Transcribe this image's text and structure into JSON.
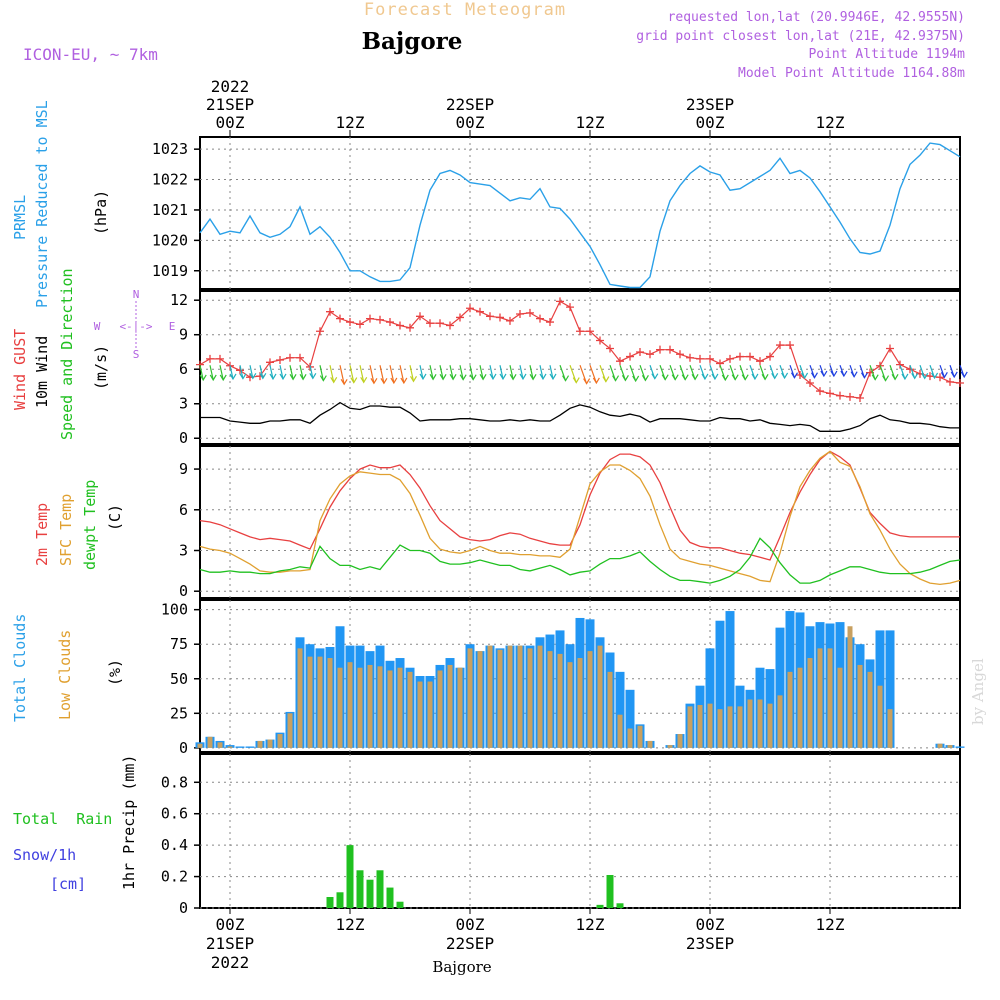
{
  "header": {
    "title": "Forecast Meteogram",
    "location": "Bajgore",
    "model": "ICON-EU, ~ 7km",
    "requested": "requested lon,lat (20.9946E, 42.9555N)",
    "grid_point": "grid point closest lon,lat (21E, 42.9375N)",
    "point_altitude": "Point Altitude 1194m",
    "model_altitude": "Model Point Altitude 1164.88m",
    "watermark": "by Angel",
    "footer_location": "Bajgore"
  },
  "time_axis": {
    "top_labels": [
      {
        "label": "00Z",
        "sub": "21SEP",
        "year": "2022",
        "hour": 3
      },
      {
        "label": "12Z",
        "sub": "",
        "year": "",
        "hour": 15
      },
      {
        "label": "00Z",
        "sub": "22SEP",
        "year": "",
        "hour": 27
      },
      {
        "label": "12Z",
        "sub": "",
        "year": "",
        "hour": 39
      },
      {
        "label": "00Z",
        "sub": "23SEP",
        "year": "",
        "hour": 51
      },
      {
        "label": "12Z",
        "sub": "",
        "year": "",
        "hour": 63
      }
    ],
    "bottom_labels": [
      {
        "label": "00Z",
        "sub": "21SEP",
        "year": "2022",
        "hour": 3
      },
      {
        "label": "12Z",
        "sub": "",
        "year": "",
        "hour": 15
      },
      {
        "label": "00Z",
        "sub": "22SEP",
        "year": "",
        "hour": 27
      },
      {
        "label": "12Z",
        "sub": "",
        "year": "",
        "hour": 39
      },
      {
        "label": "00Z",
        "sub": "23SEP",
        "year": "",
        "hour": 51
      },
      {
        "label": "12Z",
        "sub": "",
        "year": "",
        "hour": 63
      }
    ],
    "hour_range": [
      0,
      76
    ]
  },
  "panels": {
    "pressure": {
      "labels": [
        "PRMSL",
        "Pressure Reduced to MSL"
      ],
      "unit": "(hPa)",
      "ticks": [
        "1019",
        "1020",
        "1021",
        "1022",
        "1023"
      ]
    },
    "wind": {
      "labels": [
        "Wind GUST",
        "10m Wind",
        "Speed and Direction"
      ],
      "unit": "(m/s)",
      "ticks": [
        "0",
        "3",
        "6",
        "9",
        "12"
      ],
      "compass": {
        "n": "N",
        "s": "S",
        "w": "W",
        "e": "E",
        "arrows": "<-|->"
      }
    },
    "temp": {
      "labels": [
        "2m Temp",
        "SFC Temp",
        "dewpt Temp"
      ],
      "unit": "(C)",
      "ticks": [
        "0",
        "3",
        "6",
        "9"
      ]
    },
    "clouds": {
      "labels": [
        "Total Clouds",
        "Low Clouds"
      ],
      "unit": "(%)",
      "ticks": [
        "0",
        "25",
        "50",
        "75",
        "100"
      ]
    },
    "precip": {
      "labels": [
        "Total  Rain",
        "Snow/1h",
        "[cm]"
      ],
      "unit": "1hr Precip (mm)",
      "ticks": [
        "0",
        "0.2",
        "0.4",
        "0.6",
        "0.8"
      ]
    }
  },
  "colors": {
    "pressure": "#2aa0e8",
    "gust": "#e84040",
    "wind": "#000000",
    "temp2m": "#e84040",
    "sfc": "#e0a030",
    "dew": "#20c020",
    "total_clouds": "#2196f3",
    "low_clouds": "#c8a060",
    "rain": "#20c020",
    "snow": "#4040e0",
    "purple": "#b060e0",
    "title_orange": "#f0c890"
  },
  "chart_data": [
    {
      "type": "line",
      "title": "PRMSL Pressure Reduced to MSL",
      "ylabel": "(hPa)",
      "ylim": [
        1018.4,
        1023.4
      ],
      "x": [
        0,
        1,
        2,
        3,
        4,
        5,
        6,
        7,
        8,
        9,
        10,
        11,
        12,
        13,
        14,
        15,
        16,
        17,
        18,
        19,
        20,
        21,
        22,
        23,
        24,
        25,
        26,
        27,
        28,
        29,
        30,
        31,
        32,
        33,
        34,
        35,
        36,
        37,
        38,
        39,
        40,
        41,
        42,
        43,
        44,
        45,
        46,
        47,
        48,
        49,
        50,
        51,
        52,
        53,
        54,
        55,
        56,
        57,
        58,
        59,
        60,
        61,
        62,
        63,
        64,
        65,
        66,
        67,
        68,
        69,
        70,
        71,
        72,
        73,
        74,
        75,
        76
      ],
      "series": [
        {
          "name": "PRMSL",
          "values": [
            1020.25,
            1020.7,
            1020.2,
            1020.3,
            1020.25,
            1020.8,
            1020.25,
            1020.1,
            1020.2,
            1020.45,
            1021.1,
            1020.2,
            1020.45,
            1020.1,
            1019.6,
            1019.0,
            1019.0,
            1018.8,
            1018.65,
            1018.65,
            1018.7,
            1019.1,
            1020.5,
            1021.65,
            1022.2,
            1022.3,
            1022.15,
            1021.9,
            1021.85,
            1021.8,
            1021.55,
            1021.3,
            1021.4,
            1021.35,
            1021.7,
            1021.1,
            1021.05,
            1020.7,
            1020.25,
            1019.8,
            1019.2,
            1018.55,
            1018.5,
            1018.45,
            1018.45,
            1018.8,
            1020.3,
            1021.3,
            1021.8,
            1022.2,
            1022.45,
            1022.25,
            1022.15,
            1021.65,
            1021.7,
            1021.9,
            1022.1,
            1022.3,
            1022.7,
            1022.2,
            1022.3,
            1022.05,
            1021.6,
            1021.1,
            1020.6,
            1020.05,
            1019.6,
            1019.55,
            1019.65,
            1020.5,
            1021.7,
            1022.5,
            1022.8,
            1023.2,
            1023.15,
            1022.95,
            1022.75
          ]
        }
      ]
    },
    {
      "type": "line",
      "title": "Wind GUST / 10m Wind Speed and Direction",
      "ylabel": "(m/s)",
      "ylim": [
        -0.5,
        12.8
      ],
      "x": [
        0,
        1,
        2,
        3,
        4,
        5,
        6,
        7,
        8,
        9,
        10,
        11,
        12,
        13,
        14,
        15,
        16,
        17,
        18,
        19,
        20,
        21,
        22,
        23,
        24,
        25,
        26,
        27,
        28,
        29,
        30,
        31,
        32,
        33,
        34,
        35,
        36,
        37,
        38,
        39,
        40,
        41,
        42,
        43,
        44,
        45,
        46,
        47,
        48,
        49,
        50,
        51,
        52,
        53,
        54,
        55,
        56,
        57,
        58,
        59,
        60,
        61,
        62,
        63,
        64,
        65,
        66,
        67,
        68,
        69,
        70,
        71,
        72,
        73,
        74,
        75,
        76
      ],
      "series": [
        {
          "name": "Wind GUST",
          "values": [
            6.4,
            6.9,
            6.9,
            6.3,
            5.9,
            5.3,
            5.4,
            6.6,
            6.8,
            7.0,
            7.0,
            6.2,
            9.3,
            11.0,
            10.4,
            10.1,
            9.9,
            10.4,
            10.3,
            10.1,
            9.8,
            9.6,
            10.6,
            10.0,
            10.0,
            9.8,
            10.5,
            11.3,
            11.0,
            10.6,
            10.5,
            10.2,
            10.8,
            10.9,
            10.4,
            10.1,
            11.9,
            11.4,
            9.3,
            9.3,
            8.5,
            7.8,
            6.7,
            7.1,
            7.5,
            7.3,
            7.7,
            7.7,
            7.3,
            7.0,
            6.9,
            6.9,
            6.5,
            6.9,
            7.1,
            7.1,
            6.7,
            7.1,
            8.1,
            8.1,
            5.5,
            4.8,
            4.1,
            3.9,
            3.7,
            3.6,
            3.5,
            5.7,
            6.3,
            7.8,
            6.4,
            6.0,
            5.6,
            5.4,
            5.3,
            4.9,
            4.8
          ]
        },
        {
          "name": "10m Wind",
          "values": [
            1.8,
            1.8,
            1.8,
            1.5,
            1.4,
            1.3,
            1.3,
            1.5,
            1.5,
            1.6,
            1.6,
            1.3,
            2.0,
            2.5,
            3.1,
            2.6,
            2.5,
            2.8,
            2.8,
            2.7,
            2.7,
            2.2,
            1.5,
            1.6,
            1.6,
            1.6,
            1.7,
            1.7,
            1.6,
            1.5,
            1.5,
            1.6,
            1.5,
            1.6,
            1.5,
            1.5,
            2.0,
            2.6,
            2.9,
            2.7,
            2.3,
            2.0,
            1.9,
            2.1,
            1.9,
            1.4,
            1.7,
            1.7,
            1.7,
            1.6,
            1.5,
            1.5,
            1.8,
            1.7,
            1.7,
            1.5,
            1.6,
            1.3,
            1.2,
            1.1,
            1.2,
            1.1,
            0.6,
            0.6,
            0.6,
            0.8,
            1.1,
            1.7,
            2.0,
            1.6,
            1.5,
            1.3,
            1.3,
            1.2,
            1.0,
            0.9,
            0.9
          ]
        }
      ]
    },
    {
      "type": "line",
      "title": "2m Temp / SFC Temp / dewpt Temp",
      "ylabel": "(C)",
      "ylim": [
        -0.5,
        10.7
      ],
      "x": [
        0,
        1,
        2,
        3,
        4,
        5,
        6,
        7,
        8,
        9,
        10,
        11,
        12,
        13,
        14,
        15,
        16,
        17,
        18,
        19,
        20,
        21,
        22,
        23,
        24,
        25,
        26,
        27,
        28,
        29,
        30,
        31,
        32,
        33,
        34,
        35,
        36,
        37,
        38,
        39,
        40,
        41,
        42,
        43,
        44,
        45,
        46,
        47,
        48,
        49,
        50,
        51,
        52,
        53,
        54,
        55,
        56,
        57,
        58,
        59,
        60,
        61,
        62,
        63,
        64,
        65,
        66,
        67,
        68,
        69,
        70,
        71,
        72,
        73,
        74,
        75,
        76
      ],
      "series": [
        {
          "name": "2m Temp",
          "values": [
            5.2,
            5.1,
            4.9,
            4.6,
            4.3,
            4.0,
            3.8,
            3.9,
            3.8,
            3.7,
            3.4,
            3.1,
            4.6,
            6.2,
            7.4,
            8.3,
            9.0,
            9.3,
            9.1,
            9.1,
            9.3,
            8.6,
            7.6,
            6.3,
            5.2,
            4.6,
            4.0,
            3.8,
            3.7,
            3.8,
            4.1,
            4.3,
            4.2,
            3.9,
            3.7,
            3.5,
            3.4,
            3.4,
            4.9,
            7.1,
            8.7,
            9.7,
            10.1,
            10.1,
            9.9,
            9.3,
            8.0,
            6.2,
            4.5,
            3.6,
            3.3,
            3.2,
            3.2,
            3.0,
            2.8,
            2.7,
            2.5,
            2.3,
            4.0,
            5.8,
            7.3,
            8.6,
            9.7,
            10.3,
            9.9,
            9.3,
            7.6,
            5.8,
            5.0,
            4.3,
            4.1,
            4.0,
            4.0,
            4.0,
            4.0,
            4.0,
            4.0
          ]
        },
        {
          "name": "SFC Temp",
          "values": [
            3.3,
            3.1,
            3.0,
            2.8,
            2.4,
            2.0,
            1.5,
            1.4,
            1.4,
            1.5,
            1.5,
            1.6,
            5.2,
            6.8,
            7.9,
            8.5,
            8.8,
            8.7,
            8.6,
            8.6,
            8.2,
            7.2,
            5.6,
            3.9,
            3.1,
            2.9,
            2.8,
            3.0,
            3.3,
            3.0,
            2.8,
            2.8,
            2.7,
            2.7,
            2.6,
            2.6,
            2.5,
            3.1,
            5.5,
            7.9,
            8.8,
            9.3,
            9.3,
            8.9,
            8.3,
            7.0,
            4.9,
            3.1,
            2.4,
            2.2,
            2.0,
            1.9,
            1.7,
            1.5,
            1.3,
            1.1,
            0.8,
            0.7,
            2.8,
            5.5,
            7.7,
            8.9,
            9.8,
            10.3,
            9.5,
            9.2,
            7.7,
            5.7,
            4.5,
            3.1,
            2.0,
            1.3,
            0.9,
            0.6,
            0.5,
            0.6,
            0.8
          ]
        },
        {
          "name": "dewpt Temp",
          "values": [
            1.6,
            1.4,
            1.4,
            1.5,
            1.4,
            1.4,
            1.3,
            1.3,
            1.5,
            1.6,
            1.8,
            1.7,
            3.3,
            2.4,
            1.9,
            1.9,
            1.6,
            1.8,
            1.6,
            2.5,
            3.4,
            3.0,
            3.0,
            2.8,
            2.2,
            2.0,
            2.0,
            2.1,
            2.3,
            2.1,
            1.9,
            1.9,
            1.6,
            1.5,
            1.7,
            1.9,
            1.6,
            1.2,
            1.4,
            1.5,
            2.0,
            2.4,
            2.4,
            2.6,
            2.9,
            2.2,
            1.6,
            1.1,
            0.8,
            0.8,
            0.7,
            0.6,
            0.8,
            1.1,
            1.6,
            2.5,
            3.9,
            3.2,
            2.1,
            1.2,
            0.6,
            0.6,
            0.8,
            1.2,
            1.5,
            1.8,
            1.8,
            1.6,
            1.4,
            1.3,
            1.3,
            1.3,
            1.4,
            1.6,
            1.9,
            2.2,
            2.3
          ]
        }
      ]
    },
    {
      "type": "bar",
      "title": "Total Clouds / Low Clouds",
      "ylabel": "(%)",
      "ylim": [
        -3,
        107
      ],
      "x": [
        0,
        1,
        2,
        3,
        4,
        5,
        6,
        7,
        8,
        9,
        10,
        11,
        12,
        13,
        14,
        15,
        16,
        17,
        18,
        19,
        20,
        21,
        22,
        23,
        24,
        25,
        26,
        27,
        28,
        29,
        30,
        31,
        32,
        33,
        34,
        35,
        36,
        37,
        38,
        39,
        40,
        41,
        42,
        43,
        44,
        45,
        46,
        47,
        48,
        49,
        50,
        51,
        52,
        53,
        54,
        55,
        56,
        57,
        58,
        59,
        60,
        61,
        62,
        63,
        64,
        65,
        66,
        67,
        68,
        69,
        70,
        71,
        72,
        73,
        74,
        75,
        76
      ],
      "series": [
        {
          "name": "Total Clouds",
          "values": [
            4,
            8,
            5,
            2,
            1,
            1,
            5,
            6,
            11,
            26,
            80,
            75,
            72,
            73,
            88,
            74,
            74,
            70,
            74,
            63,
            65,
            58,
            52,
            52,
            60,
            65,
            58,
            75,
            70,
            74,
            72,
            74,
            74,
            74,
            80,
            82,
            85,
            75,
            94,
            93,
            80,
            69,
            55,
            42,
            17,
            5,
            0,
            2,
            10,
            32,
            45,
            72,
            92,
            99,
            45,
            42,
            58,
            57,
            87,
            99,
            98,
            88,
            91,
            90,
            91,
            80,
            75,
            64,
            85,
            85,
            0,
            0,
            0,
            0,
            3,
            2,
            1
          ]
        },
        {
          "name": "Low Clouds",
          "values": [
            3,
            8,
            4,
            1,
            0,
            0,
            5,
            6,
            10,
            25,
            72,
            66,
            66,
            65,
            58,
            62,
            58,
            60,
            59,
            56,
            58,
            55,
            48,
            48,
            56,
            60,
            58,
            72,
            70,
            74,
            71,
            74,
            74,
            72,
            74,
            70,
            68,
            62,
            65,
            70,
            74,
            55,
            24,
            14,
            16,
            5,
            0,
            2,
            10,
            30,
            31,
            32,
            28,
            30,
            30,
            35,
            35,
            32,
            38,
            55,
            58,
            65,
            72,
            72,
            58,
            88,
            60,
            55,
            45,
            28,
            0,
            0,
            0,
            0,
            3,
            2,
            0
          ]
        }
      ]
    },
    {
      "type": "bar",
      "title": "Total Rain / Snow 1h",
      "ylabel": "1hr Precip (mm)",
      "ylim": [
        0,
        0.98
      ],
      "x": [
        13,
        14,
        15,
        16,
        17,
        18,
        19,
        20,
        40,
        41,
        42
      ],
      "series": [
        {
          "name": "Total Rain",
          "values": [
            0.07,
            0.1,
            0.4,
            0.24,
            0.18,
            0.24,
            0.13,
            0.04,
            0.02,
            0.21,
            0.03
          ]
        },
        {
          "name": "Snow/1h",
          "values": [
            0,
            0,
            0,
            0,
            0,
            0,
            0,
            0,
            0,
            0,
            0
          ]
        }
      ]
    }
  ]
}
